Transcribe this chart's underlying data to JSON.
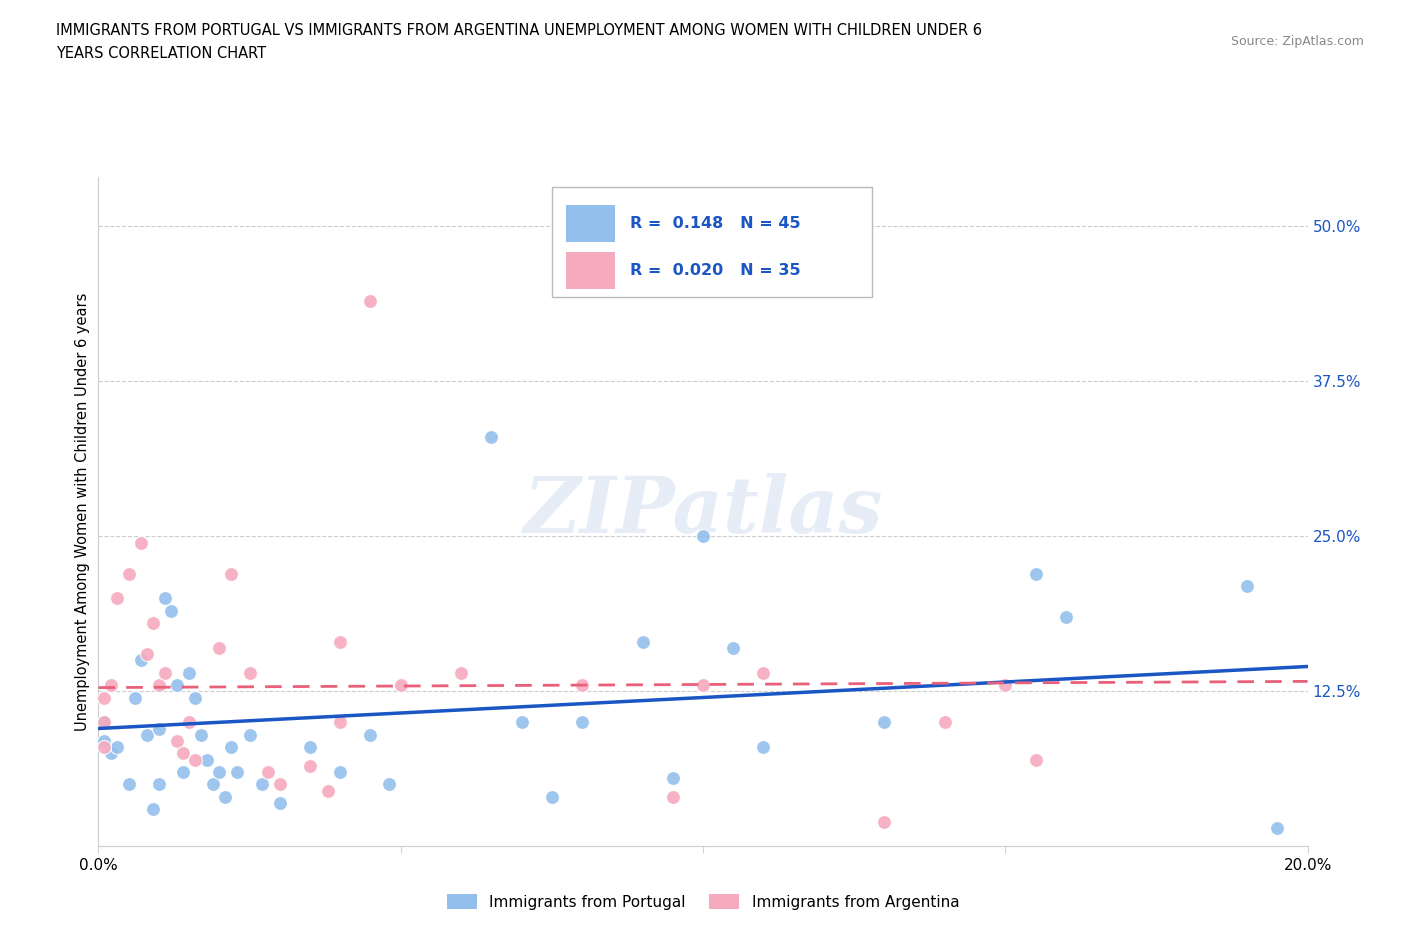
{
  "title_line1": "IMMIGRANTS FROM PORTUGAL VS IMMIGRANTS FROM ARGENTINA UNEMPLOYMENT AMONG WOMEN WITH CHILDREN UNDER 6",
  "title_line2": "YEARS CORRELATION CHART",
  "source": "Source: ZipAtlas.com",
  "ylabel": "Unemployment Among Women with Children Under 6 years",
  "xlim": [
    0.0,
    0.2
  ],
  "ylim": [
    0.0,
    0.54
  ],
  "xticks": [
    0.0,
    0.05,
    0.1,
    0.15,
    0.2
  ],
  "xtick_labels": [
    "0.0%",
    "",
    "",
    "",
    "20.0%"
  ],
  "ytick_labels_right": [
    "12.5%",
    "25.0%",
    "37.5%",
    "50.0%"
  ],
  "ytick_vals_right": [
    0.125,
    0.25,
    0.375,
    0.5
  ],
  "blue_R": 0.148,
  "blue_N": 45,
  "pink_R": 0.02,
  "pink_N": 35,
  "blue_color": "#92BFEC",
  "pink_color": "#F5AABE",
  "blue_line_color": "#1A56C4",
  "pink_line_color": "#E8607A",
  "legend_label_blue": "Immigrants from Portugal",
  "legend_label_pink": "Immigrants from Argentina",
  "watermark": "ZIPatlas",
  "blue_line_x0": 0.0,
  "blue_line_y0": 0.095,
  "blue_line_x1": 0.2,
  "blue_line_y1": 0.145,
  "pink_line_x0": 0.0,
  "pink_line_y0": 0.128,
  "pink_line_x1": 0.2,
  "pink_line_y1": 0.133,
  "blue_points_x": [
    0.001,
    0.001,
    0.002,
    0.003,
    0.005,
    0.006,
    0.007,
    0.008,
    0.009,
    0.01,
    0.01,
    0.011,
    0.012,
    0.013,
    0.014,
    0.015,
    0.016,
    0.017,
    0.018,
    0.019,
    0.02,
    0.021,
    0.022,
    0.023,
    0.025,
    0.027,
    0.03,
    0.035,
    0.04,
    0.045,
    0.048,
    0.065,
    0.07,
    0.075,
    0.08,
    0.09,
    0.095,
    0.1,
    0.105,
    0.11,
    0.13,
    0.155,
    0.16,
    0.19,
    0.195
  ],
  "blue_points_y": [
    0.085,
    0.1,
    0.075,
    0.08,
    0.05,
    0.12,
    0.15,
    0.09,
    0.03,
    0.05,
    0.095,
    0.2,
    0.19,
    0.13,
    0.06,
    0.14,
    0.12,
    0.09,
    0.07,
    0.05,
    0.06,
    0.04,
    0.08,
    0.06,
    0.09,
    0.05,
    0.035,
    0.08,
    0.06,
    0.09,
    0.05,
    0.33,
    0.1,
    0.04,
    0.1,
    0.165,
    0.055,
    0.25,
    0.16,
    0.08,
    0.1,
    0.22,
    0.185,
    0.21,
    0.015
  ],
  "pink_points_x": [
    0.001,
    0.001,
    0.001,
    0.002,
    0.003,
    0.005,
    0.007,
    0.008,
    0.009,
    0.01,
    0.011,
    0.013,
    0.014,
    0.015,
    0.016,
    0.02,
    0.022,
    0.025,
    0.028,
    0.03,
    0.035,
    0.038,
    0.04,
    0.04,
    0.045,
    0.05,
    0.06,
    0.08,
    0.095,
    0.1,
    0.11,
    0.13,
    0.14,
    0.15,
    0.155
  ],
  "pink_points_y": [
    0.08,
    0.1,
    0.12,
    0.13,
    0.2,
    0.22,
    0.245,
    0.155,
    0.18,
    0.13,
    0.14,
    0.085,
    0.075,
    0.1,
    0.07,
    0.16,
    0.22,
    0.14,
    0.06,
    0.05,
    0.065,
    0.045,
    0.1,
    0.165,
    0.44,
    0.13,
    0.14,
    0.13,
    0.04,
    0.13,
    0.14,
    0.02,
    0.1,
    0.13,
    0.07
  ]
}
